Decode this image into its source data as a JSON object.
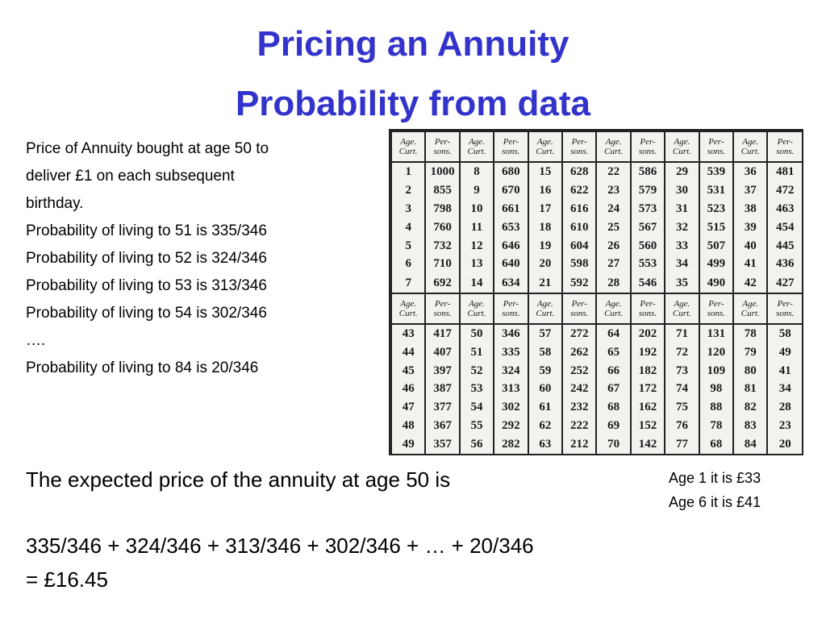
{
  "title": [
    "Pricing an Annuity",
    "Probability from data"
  ],
  "left_text": [
    "Price of Annuity bought at age 50 to",
    "deliver £1 on each subsequent",
    "birthday.",
    "Probability of living to 51 is 335/346",
    "Probability of living to 52 is 324/346",
    "Probability of living to 53 is 313/346",
    "Probability of living to 54 is 302/346",
    "….",
    "Probability of living to 84 is 20/346"
  ],
  "table": {
    "header": [
      "Age. Curt.",
      "Per-sons.",
      "Age. Curt.",
      "Per-sons.",
      "Age. Curt.",
      "Per-sons.",
      "Age. Curt.",
      "Per-sons.",
      "Age. Curt.",
      "Per-sons.",
      "Age. Curt.",
      "Per-sons."
    ],
    "top_rows": [
      [
        1,
        1000,
        8,
        680,
        15,
        628,
        22,
        586,
        29,
        539,
        36,
        481
      ],
      [
        2,
        855,
        9,
        670,
        16,
        622,
        23,
        579,
        30,
        531,
        37,
        472
      ],
      [
        3,
        798,
        10,
        661,
        17,
        616,
        24,
        573,
        31,
        523,
        38,
        463
      ],
      [
        4,
        760,
        11,
        653,
        18,
        610,
        25,
        567,
        32,
        515,
        39,
        454
      ],
      [
        5,
        732,
        12,
        646,
        19,
        604,
        26,
        560,
        33,
        507,
        40,
        445
      ],
      [
        6,
        710,
        13,
        640,
        20,
        598,
        27,
        553,
        34,
        499,
        41,
        436
      ],
      [
        7,
        692,
        14,
        634,
        21,
        592,
        28,
        546,
        35,
        490,
        42,
        427
      ]
    ],
    "bottom_rows": [
      [
        43,
        417,
        50,
        346,
        57,
        272,
        64,
        202,
        71,
        131,
        78,
        58
      ],
      [
        44,
        407,
        51,
        335,
        58,
        262,
        65,
        192,
        72,
        120,
        79,
        49
      ],
      [
        45,
        397,
        52,
        324,
        59,
        252,
        66,
        182,
        73,
        109,
        80,
        41
      ],
      [
        46,
        387,
        53,
        313,
        60,
        242,
        67,
        172,
        74,
        98,
        81,
        34
      ],
      [
        47,
        377,
        54,
        302,
        61,
        232,
        68,
        162,
        75,
        88,
        82,
        28
      ],
      [
        48,
        367,
        55,
        292,
        62,
        222,
        69,
        152,
        76,
        78,
        83,
        23
      ],
      [
        49,
        357,
        56,
        282,
        63,
        212,
        70,
        142,
        77,
        68,
        84,
        20
      ]
    ]
  },
  "expected_text": "The expected price of the annuity at age 50 is",
  "sum_text": [
    "335/346 + 324/346 + 313/346 + 302/346 + … +  20/346",
    "= £16.45"
  ],
  "side_note": [
    "Age 1 it is £33",
    "Age 6 it is £41"
  ]
}
